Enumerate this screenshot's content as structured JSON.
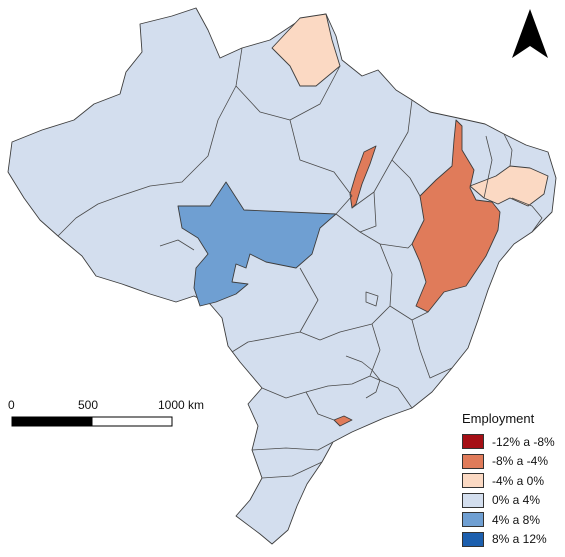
{
  "legend": {
    "title": "Employment",
    "items": [
      {
        "label": "-12% a -8%",
        "color": "#a50f15"
      },
      {
        "label": "-8% a -4%",
        "color": "#e07b5a"
      },
      {
        "label": "-4% a 0%",
        "color": "#fbd9c3"
      },
      {
        "label": "0% a 4%",
        "color": "#d3deee"
      },
      {
        "label": "4% a 8%",
        "color": "#6f9fd2"
      },
      {
        "label": "8% a 12%",
        "color": "#1c5fae"
      }
    ]
  },
  "scale_bar": {
    "labels": [
      "0",
      "500",
      "1000 km"
    ]
  },
  "north_arrow": {
    "icon": "north-arrow-icon"
  }
}
